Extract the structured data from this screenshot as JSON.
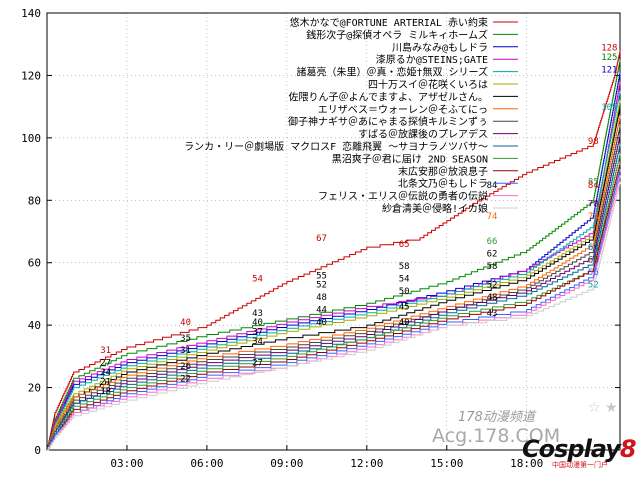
{
  "chart_data": {
    "type": "line",
    "title": "",
    "xlabel": "",
    "ylabel": "",
    "xlim": [
      0,
      21.5
    ],
    "ylim": [
      0,
      140
    ],
    "grid": true,
    "legend_position": "top-right",
    "x_ticks": [
      3,
      6,
      9,
      12,
      15,
      18
    ],
    "x_tick_labels": [
      "03:00",
      "06:00",
      "09:00",
      "12:00",
      "15:00",
      "18:00"
    ],
    "y_ticks": [
      0,
      20,
      40,
      60,
      80,
      100,
      120,
      140
    ],
    "y_tick_labels": [
      "0",
      "20",
      "40",
      "60",
      "80",
      "100",
      "120",
      "140"
    ],
    "series": [
      {
        "name": "悠木かなで@FORTUNE ARTERIAL 赤い約束",
        "color": "#cc0000",
        "points": [
          [
            0,
            0
          ],
          [
            0.3,
            12
          ],
          [
            1,
            25
          ],
          [
            3,
            33
          ],
          [
            6,
            40
          ],
          [
            9,
            54
          ],
          [
            12,
            65
          ],
          [
            14,
            68
          ],
          [
            16,
            79
          ],
          [
            18,
            89
          ],
          [
            20.5,
            98
          ],
          [
            21.3,
            120
          ],
          [
            21.5,
            128
          ]
        ]
      },
      {
        "name": "銭形次子@探偵オペラ ミルキィホームズ",
        "color": "#008800",
        "points": [
          [
            0,
            0
          ],
          [
            0.3,
            10
          ],
          [
            1,
            23
          ],
          [
            3,
            31
          ],
          [
            6,
            37
          ],
          [
            9,
            42
          ],
          [
            12,
            47
          ],
          [
            15,
            54
          ],
          [
            18,
            64
          ],
          [
            20.5,
            80
          ],
          [
            21.5,
            125
          ]
        ]
      },
      {
        "name": "川島みなみ@もしドラ",
        "color": "#0000cc",
        "points": [
          [
            0,
            0
          ],
          [
            0.3,
            9
          ],
          [
            1,
            21
          ],
          [
            3,
            28
          ],
          [
            6,
            34
          ],
          [
            9,
            40
          ],
          [
            12,
            45
          ],
          [
            15,
            51
          ],
          [
            18,
            58
          ],
          [
            20.5,
            75
          ],
          [
            21.5,
            121
          ]
        ]
      },
      {
        "name": "漆原るか@STEINS;GATE",
        "color": "#cc00cc",
        "points": [
          [
            0,
            0
          ],
          [
            0.3,
            9
          ],
          [
            1,
            22
          ],
          [
            3,
            29
          ],
          [
            6,
            35
          ],
          [
            9,
            41
          ],
          [
            12,
            46
          ],
          [
            15,
            50
          ],
          [
            18,
            58
          ],
          [
            20.5,
            70
          ],
          [
            21.5,
            118
          ]
        ]
      },
      {
        "name": "諸葛亮（朱里）＠真・恋姫†無双 シリーズ",
        "color": "#00aaaa",
        "points": [
          [
            0,
            0
          ],
          [
            0.3,
            8
          ],
          [
            1,
            20
          ],
          [
            3,
            27
          ],
          [
            6,
            33
          ],
          [
            9,
            39
          ],
          [
            12,
            44
          ],
          [
            15,
            50
          ],
          [
            18,
            57
          ],
          [
            20.5,
            72
          ],
          [
            21.5,
            115
          ]
        ]
      },
      {
        "name": "四十万スイ＠花咲くいろは",
        "color": "#aaaa00",
        "points": [
          [
            0,
            0
          ],
          [
            0.3,
            8
          ],
          [
            1,
            18
          ],
          [
            3,
            26
          ],
          [
            6,
            32
          ],
          [
            9,
            38
          ],
          [
            12,
            43
          ],
          [
            15,
            49
          ],
          [
            18,
            56
          ],
          [
            20.5,
            69
          ],
          [
            21.5,
            112
          ]
        ]
      },
      {
        "name": "佐隈りん子＠よんでますよ、アザゼルさん。",
        "color": "#000000",
        "points": [
          [
            0,
            0
          ],
          [
            0.3,
            7
          ],
          [
            1,
            17
          ],
          [
            3,
            25
          ],
          [
            6,
            31
          ],
          [
            9,
            36
          ],
          [
            12,
            40
          ],
          [
            15,
            48
          ],
          [
            18,
            55
          ],
          [
            20.5,
            68
          ],
          [
            21.5,
            110
          ]
        ]
      },
      {
        "name": "エリザベス＝ウォーレン＠そふてにっ",
        "color": "#ff6600",
        "points": [
          [
            0,
            0
          ],
          [
            0.3,
            7
          ],
          [
            1,
            17
          ],
          [
            3,
            24
          ],
          [
            6,
            30
          ],
          [
            9,
            34
          ],
          [
            12,
            39
          ],
          [
            15,
            46
          ],
          [
            18,
            53
          ],
          [
            20.5,
            66
          ],
          [
            21.5,
            107
          ]
        ]
      },
      {
        "name": "御子神ナギサ＠あにゃまる探偵キルミンずぅ",
        "color": "#444444",
        "points": [
          [
            0,
            0
          ],
          [
            0.3,
            6
          ],
          [
            1,
            16
          ],
          [
            3,
            23
          ],
          [
            6,
            29
          ],
          [
            9,
            33
          ],
          [
            12,
            38
          ],
          [
            15,
            45
          ],
          [
            18,
            52
          ],
          [
            20.5,
            64
          ],
          [
            21.5,
            104
          ]
        ]
      },
      {
        "name": "すばる＠放課後のプレアデス",
        "color": "#660066",
        "points": [
          [
            0,
            0
          ],
          [
            0.3,
            6
          ],
          [
            1,
            15
          ],
          [
            3,
            22
          ],
          [
            6,
            28
          ],
          [
            9,
            32
          ],
          [
            12,
            37
          ],
          [
            15,
            45
          ],
          [
            18,
            51
          ],
          [
            20.5,
            62
          ],
          [
            21.5,
            101
          ]
        ]
      },
      {
        "name": "ランカ・リー＠劇場版 マクロスF 恋離飛翼 ～サヨナラノツバサ～",
        "color": "#006699",
        "points": [
          [
            0,
            0
          ],
          [
            0.3,
            6
          ],
          [
            1,
            15
          ],
          [
            3,
            21
          ],
          [
            6,
            27
          ],
          [
            9,
            31
          ],
          [
            12,
            36
          ],
          [
            15,
            44
          ],
          [
            18,
            50
          ],
          [
            20.5,
            60
          ],
          [
            21.5,
            98
          ]
        ]
      },
      {
        "name": "黒沼爽子＠君に届け 2ND SEASON",
        "color": "#339933",
        "points": [
          [
            0,
            0
          ],
          [
            0.3,
            5
          ],
          [
            1,
            14
          ],
          [
            3,
            20
          ],
          [
            6,
            26
          ],
          [
            9,
            30
          ],
          [
            12,
            36
          ],
          [
            15,
            43
          ],
          [
            18,
            48
          ],
          [
            20.5,
            58
          ],
          [
            21.5,
            95
          ]
        ]
      },
      {
        "name": "末広安那＠放浪息子",
        "color": "#990000",
        "points": [
          [
            0,
            0
          ],
          [
            0.3,
            5
          ],
          [
            1,
            13
          ],
          [
            3,
            19
          ],
          [
            6,
            25
          ],
          [
            9,
            29
          ],
          [
            12,
            35
          ],
          [
            15,
            42
          ],
          [
            18,
            47
          ],
          [
            20.5,
            58
          ],
          [
            21.5,
            92
          ]
        ]
      },
      {
        "name": "北条文乃＠もしドラ",
        "color": "#3366ff",
        "points": [
          [
            0,
            0
          ],
          [
            0.3,
            5
          ],
          [
            1,
            12
          ],
          [
            3,
            18
          ],
          [
            6,
            24
          ],
          [
            9,
            28
          ],
          [
            12,
            34
          ],
          [
            15,
            41
          ],
          [
            18,
            45
          ],
          [
            20.5,
            56
          ],
          [
            21.5,
            90
          ]
        ]
      },
      {
        "name": "フェリス・エリス＠伝説の勇者の伝説",
        "color": "#ff66cc",
        "points": [
          [
            0,
            0
          ],
          [
            0.3,
            4
          ],
          [
            1,
            12
          ],
          [
            3,
            17
          ],
          [
            6,
            23
          ],
          [
            9,
            27
          ],
          [
            12,
            33
          ],
          [
            15,
            40
          ],
          [
            18,
            44
          ],
          [
            20.5,
            55
          ],
          [
            21.5,
            88
          ]
        ]
      },
      {
        "name": "紗倉清美＠侵略!イカ娘",
        "color": "#cccccc",
        "points": [
          [
            0,
            0
          ],
          [
            0.3,
            4
          ],
          [
            1,
            11
          ],
          [
            3,
            16
          ],
          [
            6,
            22
          ],
          [
            9,
            27
          ],
          [
            12,
            32
          ],
          [
            15,
            40
          ],
          [
            18,
            43
          ],
          [
            20.5,
            52
          ],
          [
            21.5,
            86
          ]
        ]
      }
    ],
    "annotations": [
      {
        "x": 21.1,
        "y": 128,
        "text": "128",
        "color": "#cc0000"
      },
      {
        "x": 21.1,
        "y": 125,
        "text": "125",
        "color": "#008800"
      },
      {
        "x": 21.1,
        "y": 121,
        "text": "121",
        "color": "#0000cc"
      },
      {
        "x": 21.1,
        "y": 109,
        "text": "109",
        "color": "#00aaaa"
      },
      {
        "x": 20.5,
        "y": 98,
        "text": "98",
        "color": "#cc0000"
      },
      {
        "x": 20.5,
        "y": 85,
        "text": "85",
        "color": "#339933"
      },
      {
        "x": 20.5,
        "y": 84,
        "text": "84",
        "color": "#cc0000"
      },
      {
        "x": 20.5,
        "y": 78,
        "text": "78",
        "color": "#660066"
      },
      {
        "x": 20.5,
        "y": 74,
        "text": "74",
        "color": "#ff6600"
      },
      {
        "x": 20.5,
        "y": 64,
        "text": "64",
        "color": "#006699"
      },
      {
        "x": 20.5,
        "y": 60,
        "text": "60",
        "color": "#444444"
      },
      {
        "x": 20.5,
        "y": 56,
        "text": "56",
        "color": "#3366ff"
      },
      {
        "x": 20.5,
        "y": 52,
        "text": "52",
        "color": "#00aaaa"
      },
      {
        "x": 16.7,
        "y": 84,
        "text": "84",
        "color": "#000000"
      },
      {
        "x": 16.7,
        "y": 74,
        "text": "74",
        "color": "#ff6600"
      },
      {
        "x": 16.7,
        "y": 66,
        "text": "66",
        "color": "#339933"
      },
      {
        "x": 16.7,
        "y": 62,
        "text": "62",
        "color": "#000000"
      },
      {
        "x": 16.7,
        "y": 58,
        "text": "58",
        "color": "#000000"
      },
      {
        "x": 16.7,
        "y": 52,
        "text": "52",
        "color": "#000000"
      },
      {
        "x": 16.7,
        "y": 48,
        "text": "48",
        "color": "#000000"
      },
      {
        "x": 16.7,
        "y": 43,
        "text": "43",
        "color": "#000000"
      },
      {
        "x": 13.4,
        "y": 65,
        "text": "65",
        "color": "#cc0000"
      },
      {
        "x": 13.4,
        "y": 58,
        "text": "58",
        "color": "#000000"
      },
      {
        "x": 13.4,
        "y": 54,
        "text": "54",
        "color": "#000000"
      },
      {
        "x": 13.4,
        "y": 50,
        "text": "50",
        "color": "#000000"
      },
      {
        "x": 13.4,
        "y": 45,
        "text": "45",
        "color": "#000000"
      },
      {
        "x": 13.4,
        "y": 40,
        "text": "40",
        "color": "#000000"
      },
      {
        "x": 10.3,
        "y": 67,
        "text": "67",
        "color": "#cc0000"
      },
      {
        "x": 10.3,
        "y": 55,
        "text": "55",
        "color": "#000000"
      },
      {
        "x": 10.3,
        "y": 52,
        "text": "52",
        "color": "#000000"
      },
      {
        "x": 10.3,
        "y": 48,
        "text": "48",
        "color": "#000000"
      },
      {
        "x": 10.3,
        "y": 44,
        "text": "44",
        "color": "#000000"
      },
      {
        "x": 10.3,
        "y": 40,
        "text": "40",
        "color": "#000000"
      },
      {
        "x": 7.9,
        "y": 54,
        "text": "54",
        "color": "#cc0000"
      },
      {
        "x": 7.9,
        "y": 43,
        "text": "43",
        "color": "#000000"
      },
      {
        "x": 7.9,
        "y": 40,
        "text": "40",
        "color": "#000000"
      },
      {
        "x": 7.9,
        "y": 37,
        "text": "37",
        "color": "#000000"
      },
      {
        "x": 7.9,
        "y": 34,
        "text": "34",
        "color": "#000000"
      },
      {
        "x": 7.9,
        "y": 27,
        "text": "27",
        "color": "#000000"
      },
      {
        "x": 5.2,
        "y": 40,
        "text": "40",
        "color": "#cc0000"
      },
      {
        "x": 5.2,
        "y": 35,
        "text": "35",
        "color": "#000000"
      },
      {
        "x": 5.2,
        "y": 31,
        "text": "31",
        "color": "#000000"
      },
      {
        "x": 5.2,
        "y": 26,
        "text": "26",
        "color": "#000000"
      },
      {
        "x": 5.2,
        "y": 22,
        "text": "22",
        "color": "#000000"
      },
      {
        "x": 2.2,
        "y": 31,
        "text": "31",
        "color": "#cc0000"
      },
      {
        "x": 2.2,
        "y": 27,
        "text": "27",
        "color": "#000000"
      },
      {
        "x": 2.2,
        "y": 24,
        "text": "24",
        "color": "#000000"
      },
      {
        "x": 2.2,
        "y": 21,
        "text": "21",
        "color": "#000000"
      },
      {
        "x": 2.2,
        "y": 18,
        "text": "18",
        "color": "#000000"
      }
    ]
  },
  "watermark": {
    "line1": "178动漫频道",
    "line2": "Acg.178.COM",
    "brand": "Cosplay",
    "brand_num": "8",
    "sub": "中国动漫第一门户"
  }
}
